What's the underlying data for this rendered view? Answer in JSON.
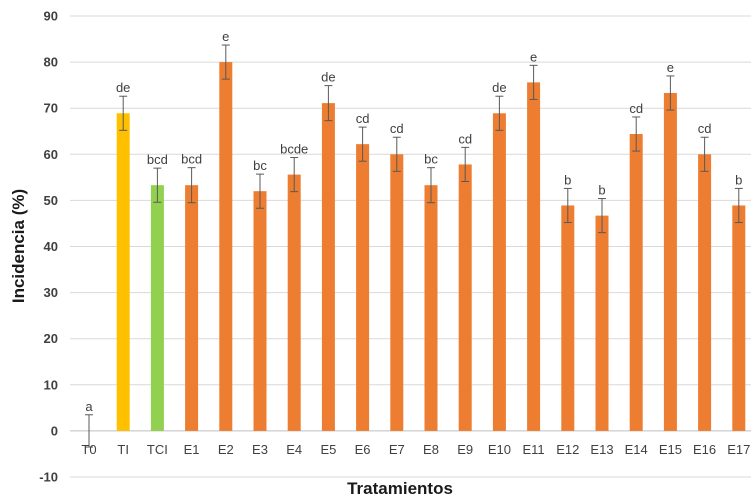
{
  "chart_data": {
    "type": "bar",
    "title": "",
    "xlabel": "Tratamientos",
    "ylabel": "Incidencia (%)",
    "ylim": [
      -10,
      90
    ],
    "yticks": [
      -10,
      0,
      10,
      20,
      30,
      40,
      50,
      60,
      70,
      80,
      90
    ],
    "grid": true,
    "legend": "none",
    "categories": [
      "T0",
      "TI",
      "TCI",
      "E1",
      "E2",
      "E3",
      "E4",
      "E5",
      "E6",
      "E7",
      "E8",
      "E9",
      "E10",
      "E11",
      "E12",
      "E13",
      "E14",
      "E15",
      "E16",
      "E17"
    ],
    "values": [
      0,
      68.9,
      53.3,
      53.3,
      80,
      52,
      55.6,
      71.1,
      62.2,
      60,
      53.3,
      57.8,
      68.9,
      75.6,
      48.9,
      46.7,
      64.4,
      73.3,
      60,
      48.9
    ],
    "errors": [
      3.5,
      3.7,
      3.7,
      3.8,
      3.7,
      3.7,
      3.7,
      3.8,
      3.7,
      3.7,
      3.8,
      3.7,
      3.7,
      3.7,
      3.7,
      3.7,
      3.7,
      3.7,
      3.7,
      3.7
    ],
    "labels": [
      "a",
      "de",
      "bcd",
      "bcd",
      "e",
      "bc",
      "bcde",
      "de",
      "cd",
      "cd",
      "bc",
      "cd",
      "de",
      "e",
      "b",
      "b",
      "cd",
      "e",
      "cd",
      "b"
    ],
    "colors": {
      "T0": "#ed7d31",
      "TI": "#ffc000",
      "TCI": "#92d050",
      "default": "#ed7d31"
    }
  }
}
